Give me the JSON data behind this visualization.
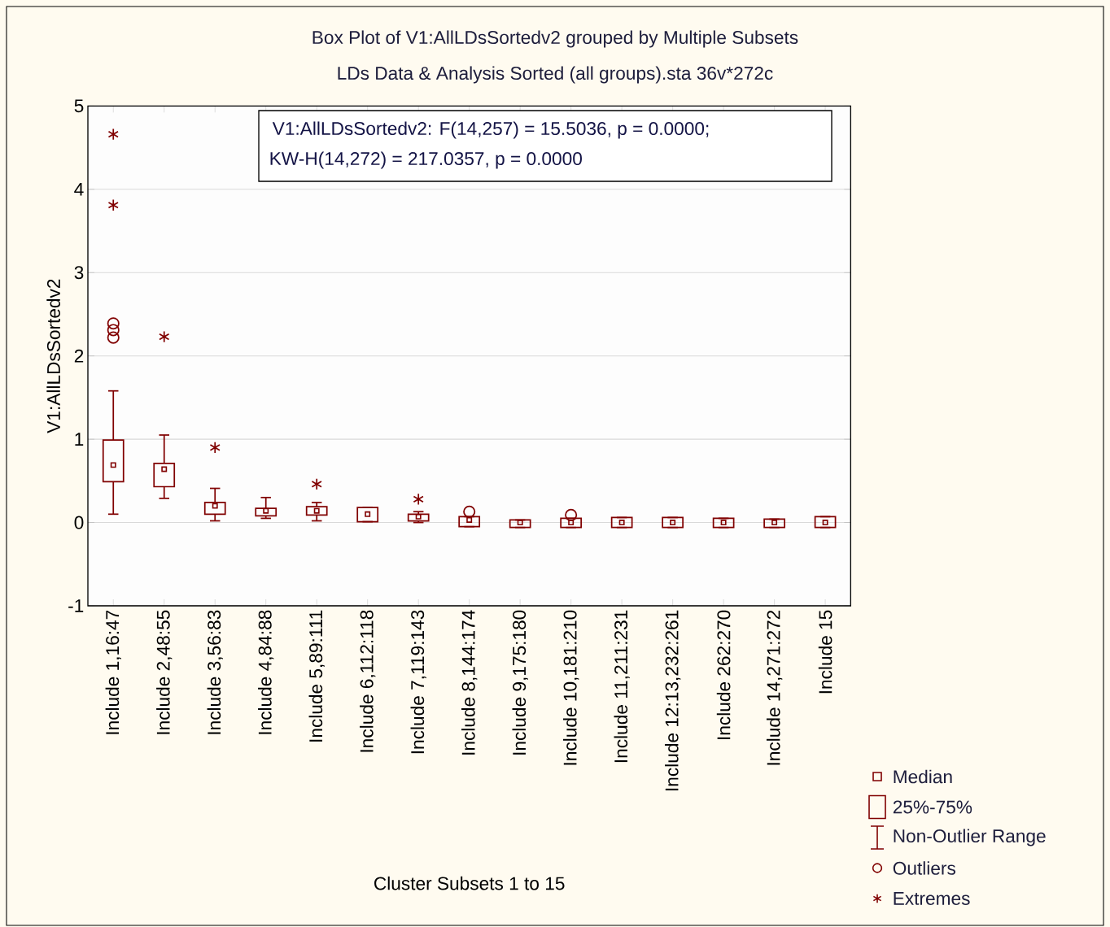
{
  "chart_data": {
    "type": "box",
    "title": "Box Plot of V1:AllLDsSortedv2 grouped by  Multiple Subsets",
    "subtitle": "LDs Data & Analysis Sorted (all groups).sta 36v*272c",
    "xlabel": "Cluster Subsets 1 to 15",
    "ylabel": "V1:AllLDsSortedv2",
    "categories": [
      "Include 1,16:47",
      "Include 2,48:55",
      "Include 3,56:83",
      "Include 4,84:88",
      "Include 5,89:111",
      "Include 6,112:118",
      "Include 7,119:143",
      "Include 8,144:174",
      "Include 9,175:180",
      "Include 10,181:210",
      "Include 11,211:231",
      "Include 12:13,232:261",
      "Include 262:270",
      "Include 14,271:272",
      "Include 15"
    ],
    "series": [
      {
        "type": "box",
        "color": "#800000",
        "boxes": [
          {
            "low": 0.1,
            "q1": 0.49,
            "median": 0.69,
            "q3": 0.99,
            "high": 1.58
          },
          {
            "low": 0.29,
            "q1": 0.43,
            "median": 0.64,
            "q3": 0.71,
            "high": 1.05
          },
          {
            "low": 0.02,
            "q1": 0.1,
            "median": 0.2,
            "q3": 0.24,
            "high": 0.41
          },
          {
            "low": 0.05,
            "q1": 0.08,
            "median": 0.14,
            "q3": 0.17,
            "high": 0.3
          },
          {
            "low": 0.02,
            "q1": 0.09,
            "median": 0.14,
            "q3": 0.19,
            "high": 0.24
          },
          {
            "low": 0.01,
            "q1": 0.01,
            "median": 0.1,
            "q3": 0.18,
            "high": 0.18
          },
          {
            "low": 0.0,
            "q1": 0.02,
            "median": 0.07,
            "q3": 0.1,
            "high": 0.13
          },
          {
            "low": -0.05,
            "q1": -0.05,
            "median": 0.03,
            "q3": 0.07,
            "high": 0.07
          },
          {
            "low": -0.06,
            "q1": -0.06,
            "median": 0.0,
            "q3": 0.03,
            "high": 0.03
          },
          {
            "low": -0.06,
            "q1": -0.06,
            "median": 0.0,
            "q3": 0.05,
            "high": 0.05
          },
          {
            "low": -0.06,
            "q1": -0.06,
            "median": 0.0,
            "q3": 0.06,
            "high": 0.06
          },
          {
            "low": -0.06,
            "q1": -0.06,
            "median": 0.0,
            "q3": 0.06,
            "high": 0.06
          },
          {
            "low": -0.06,
            "q1": -0.06,
            "median": 0.0,
            "q3": 0.05,
            "high": 0.05
          },
          {
            "low": -0.06,
            "q1": -0.06,
            "median": 0.0,
            "q3": 0.04,
            "high": 0.04
          },
          {
            "low": -0.06,
            "q1": -0.06,
            "median": 0.0,
            "q3": 0.07,
            "high": 0.07
          }
        ]
      },
      {
        "type": "scatter",
        "name": "Outliers",
        "color": "#800000",
        "marker": "circle",
        "x": [
          "Include 1,16:47",
          "Include 1,16:47",
          "Include 1,16:47",
          "Include 8,144:174",
          "Include 10,181:210"
        ],
        "values": [
          2.39,
          2.31,
          2.22,
          0.13,
          0.09
        ]
      },
      {
        "type": "scatter",
        "name": "Extremes",
        "color": "#800000",
        "marker": "cross",
        "x": [
          "Include 1,16:47",
          "Include 1,16:47",
          "Include 2,48:55",
          "Include 3,56:83",
          "Include 5,89:111",
          "Include 7,119:143"
        ],
        "values": [
          4.66,
          3.81,
          2.23,
          0.9,
          0.46,
          0.28
        ]
      }
    ],
    "ylim": [
      -1,
      5
    ],
    "yticks": [
      -1,
      0,
      1,
      2,
      3,
      4,
      5
    ],
    "grid": "y",
    "legend": "bottom right",
    "annotations": [
      "V1:AllLDsSortedv2:   F(14,257) = 15.5036, p = 0.0000;",
      "KW-H(14,272) = 217.0357, p = 0.0000",
      "Median",
      "25%-75%",
      "Non-Outlier Range"
    ]
  }
}
